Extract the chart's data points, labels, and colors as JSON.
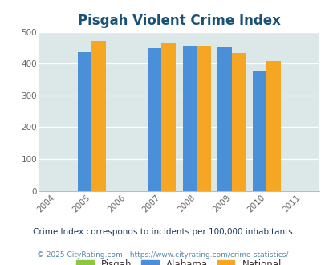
{
  "title": "Pisgah Violent Crime Index",
  "years": [
    2004,
    2005,
    2006,
    2007,
    2008,
    2009,
    2010,
    2011
  ],
  "bar_years": [
    2005,
    2007,
    2008,
    2009,
    2010
  ],
  "alabama_values": [
    435,
    448,
    455,
    450,
    377
  ],
  "national_values": [
    470,
    465,
    455,
    433,
    407
  ],
  "bar_width": 0.4,
  "color_pisgah": "#8dc63f",
  "color_alabama": "#4a90d9",
  "color_national": "#f5a623",
  "color_background": "#dce8e8",
  "color_title": "#1a5276",
  "ylim": [
    0,
    500
  ],
  "yticks": [
    0,
    100,
    200,
    300,
    400,
    500
  ],
  "footnote1": "Crime Index corresponds to incidents per 100,000 inhabitants",
  "footnote2": "© 2025 CityRating.com - https://www.cityrating.com/crime-statistics/",
  "legend_labels": [
    "Pisgah",
    "Alabama",
    "National"
  ],
  "footnote1_color": "#1a3a5c",
  "footnote2_color": "#5588aa"
}
